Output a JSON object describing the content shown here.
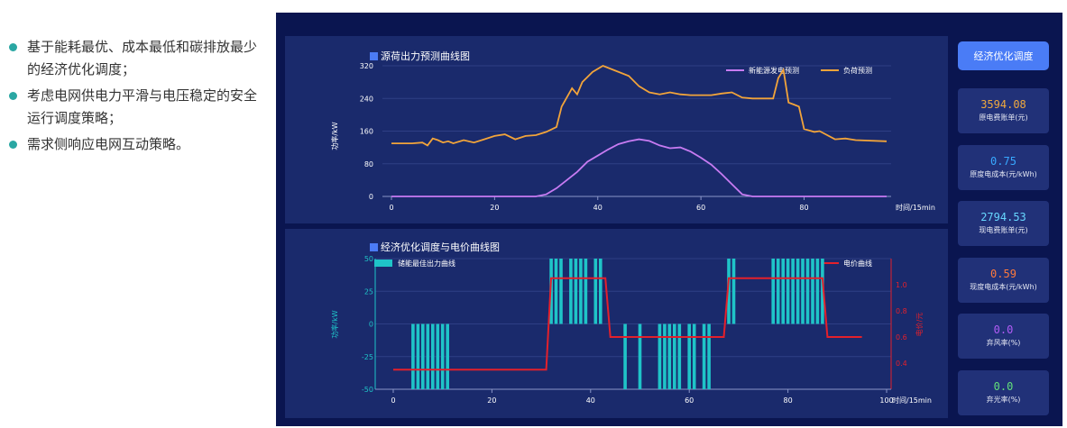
{
  "bullets": [
    "基于能耗最优、成本最低和碳排放最少的经济优化调度；",
    "考虑电网供电力平滑与电压稳定的安全运行调度策略；",
    "需求侧响应电网互动策略。"
  ],
  "chart1": {
    "title": "源荷出力预测曲线图",
    "ylabel": "功率/kW",
    "xlabel": "时间/15min",
    "legend": [
      "新能源发电预测",
      "负荷预测"
    ]
  },
  "chart2": {
    "title": "经济优化调度与电价曲线图",
    "ylabel": "功率/kW",
    "y2label": "电价/元",
    "xlabel": "时间/15min",
    "legend_bar": "储能最佳出力曲线",
    "legend_line": "电价曲线"
  },
  "sidebar": {
    "button": "经济优化调度",
    "cards": [
      {
        "value": "3594.08",
        "label": "原电费账单(元)",
        "color": "#f0a93e"
      },
      {
        "value": "0.75",
        "label": "原度电成本(元/kWh)",
        "color": "#38a8ff"
      },
      {
        "value": "2794.53",
        "label": "现电费账单(元)",
        "color": "#67d7ff"
      },
      {
        "value": "0.59",
        "label": "现度电成本(元/kWh)",
        "color": "#ff7a3c"
      },
      {
        "value": "0.0",
        "label": "弃风率(%)",
        "color": "#b15cf5"
      },
      {
        "value": "0.0",
        "label": "弃光率(%)",
        "color": "#62e07a"
      }
    ]
  },
  "colors": {
    "renewable": "#c77bf2",
    "load": "#f2a43a",
    "bar": "#1fc4c8",
    "price": "#e3202b"
  },
  "chart_data": [
    {
      "type": "line",
      "title": "源荷出力预测曲线图",
      "xlabel": "时间/15min",
      "ylabel": "功率/kW",
      "xlim": [
        0,
        96
      ],
      "ylim": [
        0,
        320
      ],
      "x_ticks": [
        0,
        20,
        40,
        60,
        80
      ],
      "y_ticks": [
        0,
        80,
        160,
        240,
        320
      ],
      "series": [
        {
          "name": "新能源发电预测",
          "x": [
            0,
            28,
            30,
            32,
            34,
            36,
            38,
            40,
            42,
            44,
            46,
            48,
            50,
            52,
            54,
            56,
            58,
            60,
            62,
            64,
            66,
            68,
            70,
            96
          ],
          "y": [
            0,
            0,
            5,
            20,
            40,
            60,
            85,
            100,
            115,
            128,
            135,
            140,
            136,
            125,
            118,
            120,
            110,
            95,
            78,
            55,
            30,
            5,
            0,
            0
          ]
        },
        {
          "name": "负荷预测",
          "x": [
            0,
            4,
            6,
            7,
            8,
            9,
            10,
            11,
            12,
            14,
            16,
            18,
            20,
            22,
            24,
            26,
            28,
            30,
            32,
            33,
            35,
            36,
            37,
            39,
            41,
            43,
            46,
            48,
            50,
            52,
            54,
            56,
            58,
            62,
            64,
            66,
            68,
            70,
            74,
            75,
            76,
            77,
            78,
            79,
            80,
            82,
            83,
            86,
            88,
            90,
            96
          ],
          "y": [
            130,
            130,
            132,
            125,
            142,
            138,
            132,
            135,
            130,
            138,
            132,
            140,
            148,
            152,
            140,
            148,
            150,
            158,
            170,
            220,
            265,
            250,
            280,
            305,
            320,
            310,
            295,
            270,
            255,
            250,
            255,
            250,
            248,
            248,
            252,
            255,
            242,
            240,
            240,
            290,
            310,
            230,
            225,
            220,
            165,
            158,
            160,
            140,
            142,
            138,
            135
          ]
        }
      ]
    },
    {
      "type": "bar",
      "title": "经济优化调度与电价曲线图",
      "xlabel": "时间/15min",
      "ylabel": "功率/kW",
      "y2label": "电价/元",
      "xlim": [
        0,
        100
      ],
      "ylim": [
        -50,
        50
      ],
      "x_ticks": [
        0,
        20,
        40,
        60,
        80,
        100
      ],
      "y_ticks": [
        50,
        25,
        0,
        -25,
        -50
      ],
      "y2lim": [
        0.2,
        1.2
      ],
      "y2_ticks": [
        0.4,
        0.6,
        0.8,
        1.0
      ],
      "series": [
        {
          "name": "储能最佳出力曲线",
          "x": [
            4,
            5,
            6,
            7,
            8,
            9,
            10,
            11,
            32,
            33,
            34,
            36,
            37,
            38,
            39,
            41,
            42,
            47,
            50,
            54,
            55,
            56,
            57,
            58,
            60,
            61,
            63,
            64,
            68,
            69,
            77,
            78,
            79,
            80,
            81,
            82,
            83,
            84,
            85,
            86,
            87
          ],
          "y": [
            -50,
            -50,
            -50,
            -50,
            -50,
            -50,
            -50,
            -50,
            50,
            50,
            50,
            50,
            50,
            50,
            50,
            50,
            50,
            -50,
            -50,
            -50,
            -50,
            -50,
            -50,
            -50,
            -50,
            -50,
            -50,
            -50,
            50,
            50,
            50,
            50,
            50,
            50,
            50,
            50,
            50,
            50,
            50,
            50,
            50
          ]
        },
        {
          "name": "电价曲线",
          "x": [
            0,
            31,
            32,
            43,
            44,
            67,
            68,
            87,
            88,
            95
          ],
          "y": [
            0.35,
            0.35,
            1.05,
            1.05,
            0.6,
            0.6,
            1.05,
            1.05,
            0.6,
            0.6
          ]
        }
      ]
    }
  ]
}
